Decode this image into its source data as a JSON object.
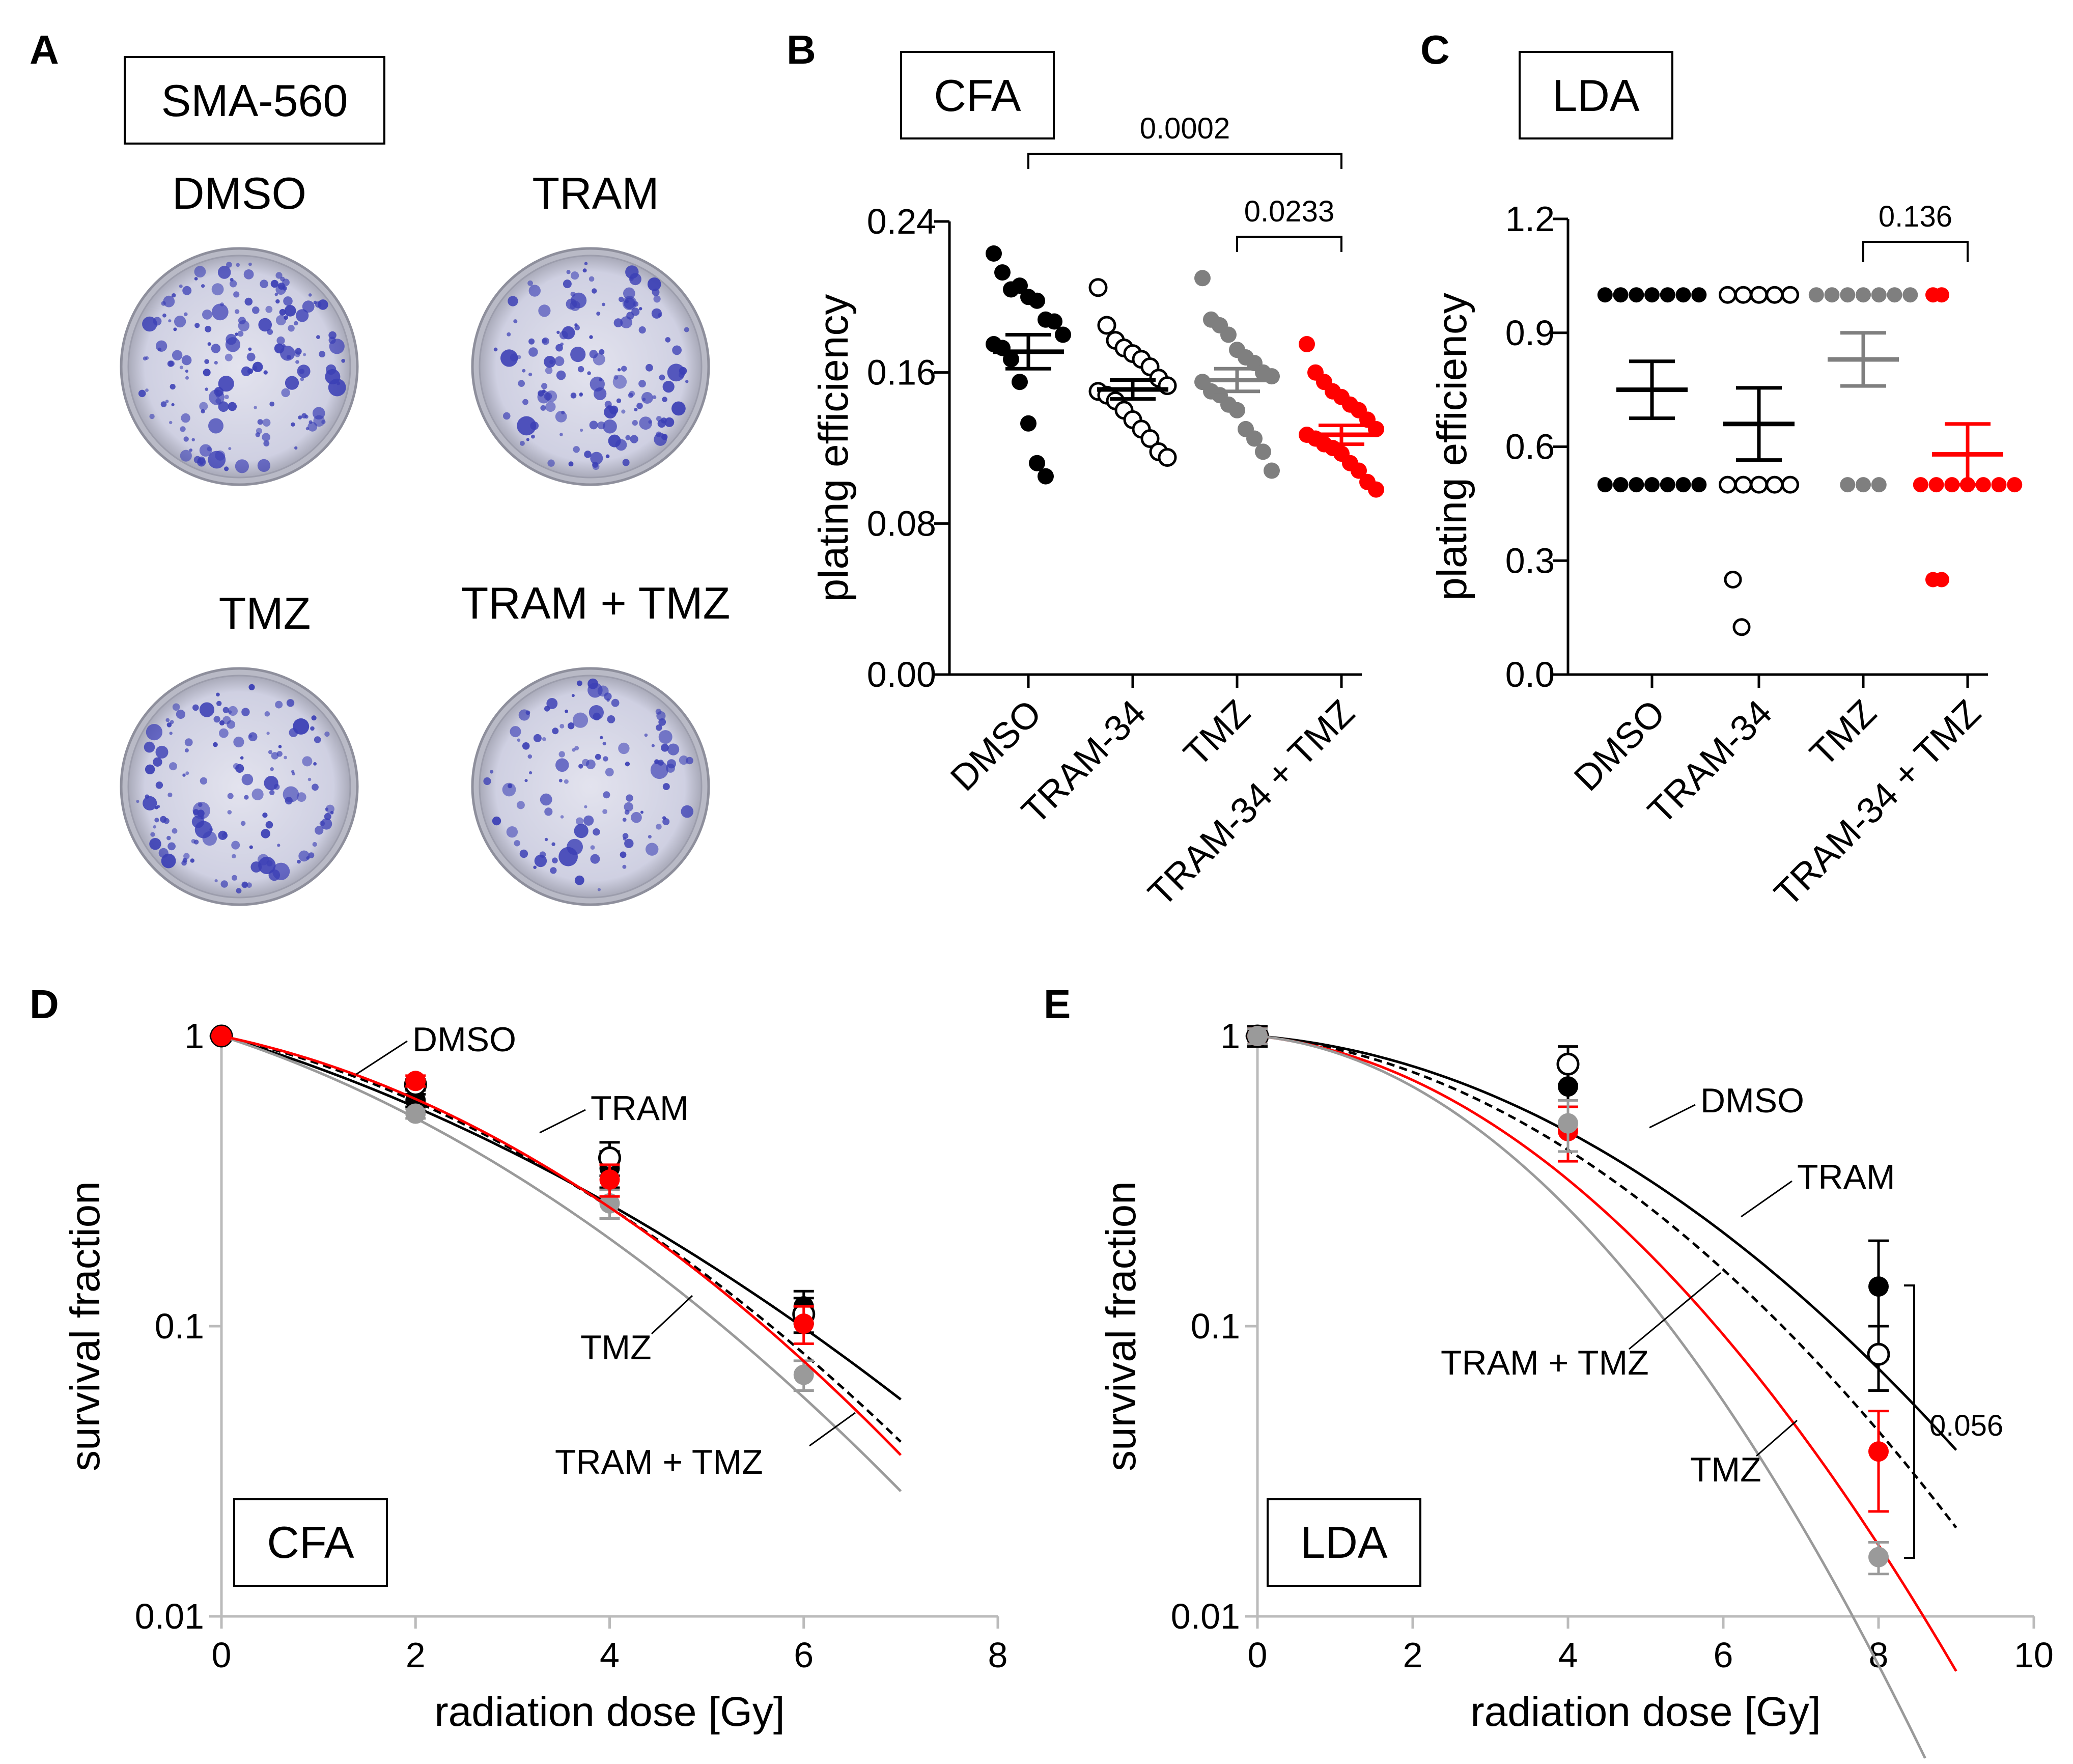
{
  "panels": {
    "A": {
      "letter": "A",
      "cell_line": "SMA-560",
      "conditions": [
        "DMSO",
        "TRAM",
        "TMZ",
        "TRAM + TMZ"
      ]
    },
    "B": {
      "letter": "B",
      "assay": "CFA",
      "p_values": [
        "0.0002",
        "0.0233"
      ]
    },
    "C": {
      "letter": "C",
      "assay": "LDA",
      "p_values": [
        "0.136"
      ]
    },
    "D": {
      "letter": "D",
      "assay": "CFA",
      "curve_labels": [
        "DMSO",
        "TRAM",
        "TMZ",
        "TRAM + TMZ"
      ]
    },
    "E": {
      "letter": "E",
      "assay": "LDA",
      "curve_labels": [
        "DMSO",
        "TRAM",
        "TRAM + TMZ",
        "TMZ"
      ],
      "p_values": [
        "0.056"
      ]
    }
  },
  "colors": {
    "dmso": "#000000",
    "tram": "#000000",
    "tmz": "#7f7f7f",
    "combo": "#ff0000",
    "dish_bg": "#cfd0e2",
    "colony": "#3b3fb5"
  },
  "chart_data": [
    {
      "id": "B",
      "type": "scatter",
      "title": "CFA",
      "xlabel": "",
      "ylabel": "plating efficiency",
      "ylim": [
        0,
        0.24
      ],
      "yticks": [
        "0.00",
        "0.08",
        "0.16",
        "0.24"
      ],
      "categories": [
        "DMSO",
        "TRAM-34",
        "TMZ",
        "TRAM-34 + TMZ"
      ],
      "series": [
        {
          "name": "DMSO",
          "color": "#000000",
          "filled": true,
          "mean": 0.171,
          "sem": 0.009,
          "values": [
            0.223,
            0.213,
            0.204,
            0.206,
            0.2,
            0.198,
            0.188,
            0.187,
            0.18,
            0.175,
            0.173,
            0.167,
            0.155,
            0.133,
            0.112,
            0.105
          ]
        },
        {
          "name": "TRAM-34",
          "color": "#000000",
          "filled": false,
          "mean": 0.151,
          "sem": 0.005,
          "values": [
            0.205,
            0.185,
            0.177,
            0.173,
            0.17,
            0.167,
            0.163,
            0.157,
            0.153,
            0.15,
            0.148,
            0.145,
            0.14,
            0.135,
            0.13,
            0.125,
            0.118,
            0.115
          ]
        },
        {
          "name": "TMZ",
          "color": "#7f7f7f",
          "filled": true,
          "mean": 0.156,
          "sem": 0.006,
          "values": [
            0.21,
            0.188,
            0.185,
            0.18,
            0.172,
            0.168,
            0.165,
            0.16,
            0.158,
            0.155,
            0.15,
            0.148,
            0.143,
            0.14,
            0.13,
            0.125,
            0.118,
            0.108
          ]
        },
        {
          "name": "TRAM-34 + TMZ",
          "color": "#ff0000",
          "filled": true,
          "mean": 0.127,
          "sem": 0.005,
          "values": [
            0.175,
            0.16,
            0.155,
            0.15,
            0.147,
            0.143,
            0.14,
            0.135,
            0.13,
            0.127,
            0.125,
            0.122,
            0.12,
            0.117,
            0.112,
            0.108,
            0.102,
            0.098
          ]
        }
      ],
      "brackets": [
        {
          "from": "DMSO",
          "to": "TRAM-34 + TMZ",
          "label": "0.0002"
        },
        {
          "from": "TMZ",
          "to": "TRAM-34 + TMZ",
          "label": "0.0233"
        }
      ]
    },
    {
      "id": "C",
      "type": "scatter",
      "title": "LDA",
      "xlabel": "",
      "ylabel": "plating efficiency",
      "ylim": [
        0,
        1.2
      ],
      "yticks": [
        "0.0",
        "0.3",
        "0.6",
        "0.9",
        "1.2"
      ],
      "categories": [
        "DMSO",
        "TRAM-34",
        "TMZ",
        "TRAM-34 + TMZ"
      ],
      "series": [
        {
          "name": "DMSO",
          "color": "#000000",
          "filled": true,
          "mean": 0.75,
          "sem": 0.075,
          "values": [
            1,
            1,
            1,
            1,
            1,
            1,
            1,
            0.5,
            0.5,
            0.5,
            0.5,
            0.5,
            0.5,
            0.5
          ]
        },
        {
          "name": "TRAM-34",
          "color": "#000000",
          "filled": false,
          "mean": 0.66,
          "sem": 0.095,
          "values": [
            1,
            1,
            1,
            1,
            1,
            0.5,
            0.5,
            0.5,
            0.5,
            0.5,
            0.25,
            0.125
          ]
        },
        {
          "name": "TMZ",
          "color": "#7f7f7f",
          "filled": true,
          "mean": 0.83,
          "sem": 0.07,
          "values": [
            1,
            1,
            1,
            1,
            1,
            1,
            1,
            0.5,
            0.5,
            0.5
          ]
        },
        {
          "name": "TRAM-34 + TMZ",
          "color": "#ff0000",
          "filled": true,
          "mean": 0.58,
          "sem": 0.08,
          "values": [
            1,
            1,
            0.5,
            0.5,
            0.5,
            0.5,
            0.5,
            0.5,
            0.5,
            0.25,
            0.25
          ]
        }
      ],
      "brackets": [
        {
          "from": "TMZ",
          "to": "TRAM-34 + TMZ",
          "label": "0.136"
        }
      ]
    },
    {
      "id": "D",
      "type": "line",
      "title": "CFA",
      "xlabel": "radiation dose [Gy]",
      "ylabel": "survival fraction",
      "xlim": [
        0,
        8
      ],
      "ylim": [
        0.01,
        1
      ],
      "yscale": "log",
      "xticks": [
        "0",
        "2",
        "4",
        "6",
        "8"
      ],
      "yticks": [
        "0.01",
        "0.1",
        "1"
      ],
      "series": [
        {
          "name": "DMSO",
          "color": "#000000",
          "style": "solid",
          "filled": true,
          "points": [
            [
              0,
              1,
              0
            ],
            [
              2,
              0.6,
              0.03
            ],
            [
              4,
              0.35,
              0.05
            ],
            [
              6,
              0.117,
              0.015
            ]
          ],
          "fit": {
            "alpha": 0.23,
            "beta": 0.026,
            "xmax": 7
          }
        },
        {
          "name": "TRAM",
          "color": "#000000",
          "style": "dashed",
          "filled": false,
          "points": [
            [
              0,
              1,
              0
            ],
            [
              2,
              0.68,
              0.03
            ],
            [
              4,
              0.38,
              0.05
            ],
            [
              6,
              0.11,
              0.015
            ]
          ],
          "fit": {
            "alpha": 0.18,
            "beta": 0.04,
            "xmax": 7
          }
        },
        {
          "name": "TMZ",
          "color": "#9a9a9a",
          "style": "solid",
          "filled": true,
          "points": [
            [
              0,
              1,
              0
            ],
            [
              2,
              0.54,
              0.02
            ],
            [
              4,
              0.265,
              0.03
            ],
            [
              6,
              0.068,
              0.008
            ]
          ],
          "fit": {
            "alpha": 0.25,
            "beta": 0.038,
            "xmax": 7
          }
        },
        {
          "name": "TRAM + TMZ",
          "color": "#ff0000",
          "style": "solid",
          "filled": true,
          "points": [
            [
              0,
              1,
              0
            ],
            [
              2,
              0.7,
              0.03
            ],
            [
              4,
              0.32,
              0.04
            ],
            [
              6,
              0.102,
              0.015
            ]
          ],
          "fit": {
            "alpha": 0.16,
            "beta": 0.045,
            "xmax": 7
          }
        }
      ]
    },
    {
      "id": "E",
      "type": "line",
      "title": "LDA",
      "xlabel": "radiation dose [Gy]",
      "ylabel": "survival fraction",
      "xlim": [
        0,
        10
      ],
      "ylim": [
        0.01,
        1
      ],
      "yscale": "log",
      "xticks": [
        "0",
        "2",
        "4",
        "6",
        "8",
        "10"
      ],
      "yticks": [
        "0.01",
        "0.1",
        "1"
      ],
      "series": [
        {
          "name": "DMSO",
          "color": "#000000",
          "style": "solid",
          "filled": true,
          "points": [
            [
              0,
              1,
              0.08
            ],
            [
              4,
              0.67,
              0.1
            ],
            [
              8,
              0.137,
              0.06
            ]
          ],
          "fit": {
            "alpha": 0.05,
            "beta": 0.035,
            "xmax": 9
          }
        },
        {
          "name": "TRAM",
          "color": "#000000",
          "style": "dashed",
          "filled": false,
          "points": [
            [
              0,
              1,
              0.06
            ],
            [
              4,
              0.8,
              0.12
            ],
            [
              8,
              0.08,
              0.02
            ]
          ],
          "fit": {
            "alpha": 0.06,
            "beta": 0.0415,
            "xmax": 9
          }
        },
        {
          "name": "TRAM + TMZ",
          "color": "#ff0000",
          "style": "solid",
          "filled": true,
          "points": [
            [
              0,
              1,
              0.06
            ],
            [
              4,
              0.47,
              0.1
            ],
            [
              8,
              0.037,
              0.014
            ]
          ],
          "fit": {
            "alpha": 0.065,
            "beta": 0.055,
            "xmax": 9
          }
        },
        {
          "name": "TMZ",
          "color": "#9a9a9a",
          "style": "solid",
          "filled": true,
          "points": [
            [
              0,
              1,
              0.06
            ],
            [
              4,
              0.5,
              0.1
            ],
            [
              8,
              0.016,
              0.002
            ]
          ],
          "fit": {
            "alpha": 0.06,
            "beta": 0.0705,
            "xmax": 8.6
          }
        }
      ],
      "brackets": [
        {
          "from": "DMSO@8",
          "to": "TMZ@8",
          "label": "0.056"
        }
      ]
    }
  ]
}
